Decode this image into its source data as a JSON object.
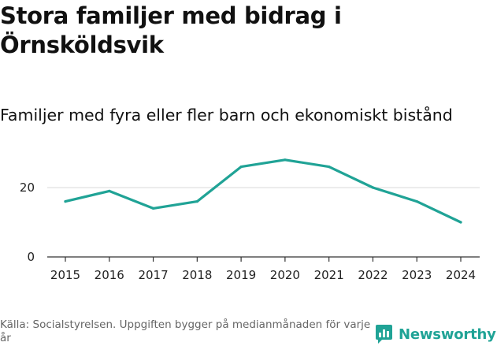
{
  "title": "Stora familjer med bidrag i Örnsköldsvik",
  "subtitle": "Familjer med fyra eller fler barn och ekonomiskt bistånd",
  "source": "Källa: Socialstyrelsen. Uppgiften bygger på medianmånaden för varje år",
  "brand": "Newsworthy",
  "colors": {
    "line": "#20a396",
    "grid": "#d9d9d9",
    "axis": "#333333",
    "brand": "#20a396"
  },
  "chart_data": {
    "type": "line",
    "title": "Stora familjer med bidrag i Örnsköldsvik",
    "subtitle": "Familjer med fyra eller fler barn och ekonomiskt bistånd",
    "x": [
      2015,
      2016,
      2017,
      2018,
      2019,
      2020,
      2021,
      2022,
      2023,
      2024
    ],
    "series": [
      {
        "values": [
          16,
          19,
          14,
          16,
          26,
          28,
          26,
          20,
          16,
          10
        ]
      }
    ],
    "yticks": [
      0,
      20
    ],
    "ylim": [
      0,
      30
    ],
    "grid": "horizontal",
    "legend": "none"
  }
}
